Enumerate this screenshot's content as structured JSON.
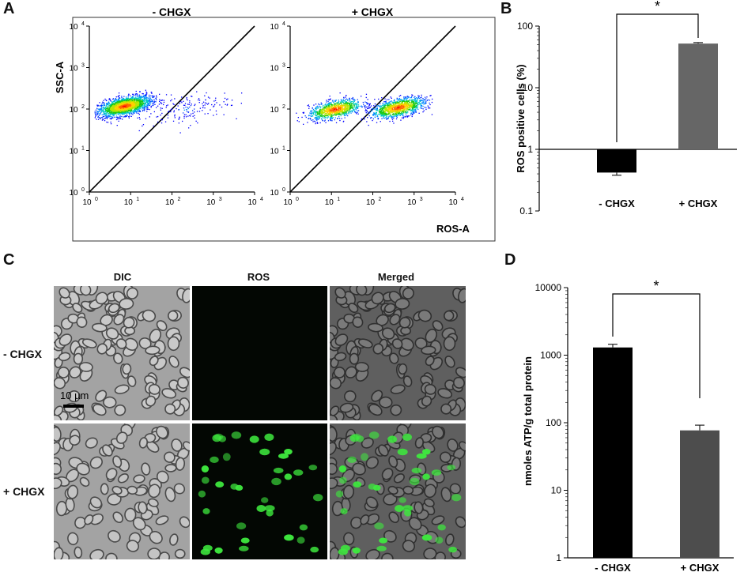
{
  "panels": {
    "a": "A",
    "b": "B",
    "c": "C",
    "d": "D"
  },
  "panel_a": {
    "plot_titles": [
      "- CHGX",
      "+ CHGX"
    ],
    "ylabel": "SSC-A",
    "xlabel": "ROS-A",
    "tick_base": "10",
    "tick_exponents": [
      "0",
      "1",
      "2",
      "3",
      "4"
    ]
  },
  "panel_c": {
    "column_titles": [
      "DIC",
      "ROS",
      "Merged"
    ],
    "row_labels": [
      "- CHGX",
      "+ CHGX"
    ],
    "scale_bar": "10 µm"
  },
  "chart_data": [
    {
      "id": "A-left",
      "type": "scatter",
      "title": "- CHGX",
      "xlabel": "",
      "ylabel": "SSC-A",
      "xscale": "log",
      "yscale": "log",
      "xlim": [
        1,
        10000
      ],
      "ylim": [
        1,
        10000
      ],
      "populations": [
        {
          "center_x": 7,
          "center_y": 120,
          "share": 0.92
        },
        {
          "center_x": 200,
          "center_y": 100,
          "share": 0.08
        }
      ],
      "reference_line": "diagonal"
    },
    {
      "id": "A-right",
      "type": "scatter",
      "title": "+ CHGX",
      "xlabel": "ROS-A",
      "ylabel": "",
      "xscale": "log",
      "yscale": "log",
      "xlim": [
        1,
        10000
      ],
      "ylim": [
        1,
        10000
      ],
      "populations": [
        {
          "center_x": 12,
          "center_y": 100,
          "share": 0.45
        },
        {
          "center_x": 400,
          "center_y": 110,
          "share": 0.55
        }
      ],
      "reference_line": "diagonal"
    },
    {
      "id": "B",
      "type": "bar",
      "categories": [
        "- CHGX",
        "+ CHGX"
      ],
      "values": [
        0.42,
        52
      ],
      "errors": [
        0.04,
        2
      ],
      "bar_colors": [
        "#000000",
        "#666666"
      ],
      "xlabel": "",
      "ylabel": "ROS positive cells (%)",
      "yscale": "log",
      "ylim": [
        0.1,
        100
      ],
      "yticks": [
        "0.1",
        "1",
        "10",
        "100"
      ],
      "significance": "*"
    },
    {
      "id": "D",
      "type": "bar",
      "categories": [
        "- CHGX",
        "+ CHGX"
      ],
      "values": [
        1300,
        77
      ],
      "errors": [
        150,
        15
      ],
      "bar_colors": [
        "#000000",
        "#4d4d4d"
      ],
      "xlabel": "",
      "ylabel": "nmoles ATP/g total protein",
      "yscale": "log",
      "ylim": [
        1,
        10000
      ],
      "yticks": [
        "1",
        "10",
        "100",
        "1000",
        "10000"
      ],
      "significance": "*"
    }
  ]
}
